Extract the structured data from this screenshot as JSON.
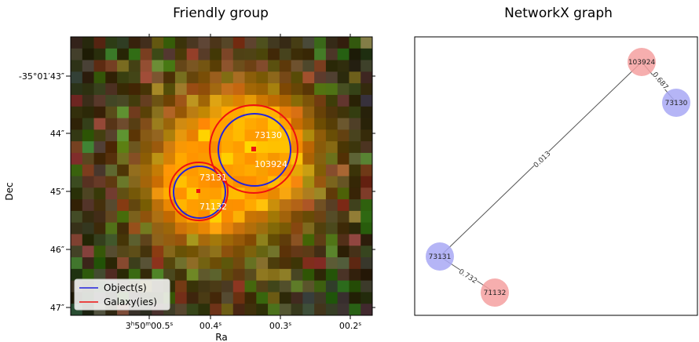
{
  "chart_data": [
    {
      "type": "image-overlay",
      "title": "Friendly group",
      "xlabel": "Ra",
      "ylabel": "Dec",
      "x_ticks": [
        {
          "main": "3",
          "sup1": "h",
          "mid": "50",
          "sup2": "m",
          "rest": "00.5",
          "sup3": "s"
        },
        {
          "main": "00.4",
          "sup3": "s"
        },
        {
          "main": "00.3",
          "sup3": "s"
        },
        {
          "main": "00.2",
          "sup3": "s"
        }
      ],
      "y_ticks": [
        "-35°01′43″",
        "44″",
        "45″",
        "46″",
        "47″"
      ],
      "legend": {
        "placement": "lower-left",
        "entries": [
          {
            "label": "Object(s)",
            "color": "#2222dd"
          },
          {
            "label": "Galaxy(ies)",
            "color": "#ee1111"
          }
        ]
      },
      "sources": [
        {
          "object_id": "73131",
          "galaxy_id": "71132"
        },
        {
          "object_id": "73130",
          "galaxy_id": "103924"
        }
      ]
    },
    {
      "type": "network",
      "title": "NetworkX graph",
      "nodes": [
        {
          "id": "103924",
          "kind": "galaxy",
          "color": "#f4a0a0"
        },
        {
          "id": "73130",
          "kind": "object",
          "color": "#a8a8f4"
        },
        {
          "id": "73131",
          "kind": "object",
          "color": "#a8a8f4"
        },
        {
          "id": "71132",
          "kind": "galaxy",
          "color": "#f4a0a0"
        }
      ],
      "edges": [
        {
          "source": "103924",
          "target": "73130",
          "weight": "0.687"
        },
        {
          "source": "103924",
          "target": "73131",
          "weight": "0.013"
        },
        {
          "source": "73131",
          "target": "71132",
          "weight": "0.732"
        }
      ]
    }
  ]
}
